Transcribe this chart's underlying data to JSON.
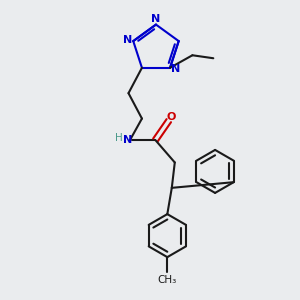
{
  "background_color": "#eaecee",
  "bond_color": "#1a1a1a",
  "nitrogen_color": "#0000cc",
  "oxygen_color": "#cc0000",
  "nh_color": "#4a9a8a",
  "figsize": [
    3.0,
    3.0
  ],
  "dpi": 100,
  "xlim": [
    0,
    10
  ],
  "ylim": [
    0,
    10
  ]
}
